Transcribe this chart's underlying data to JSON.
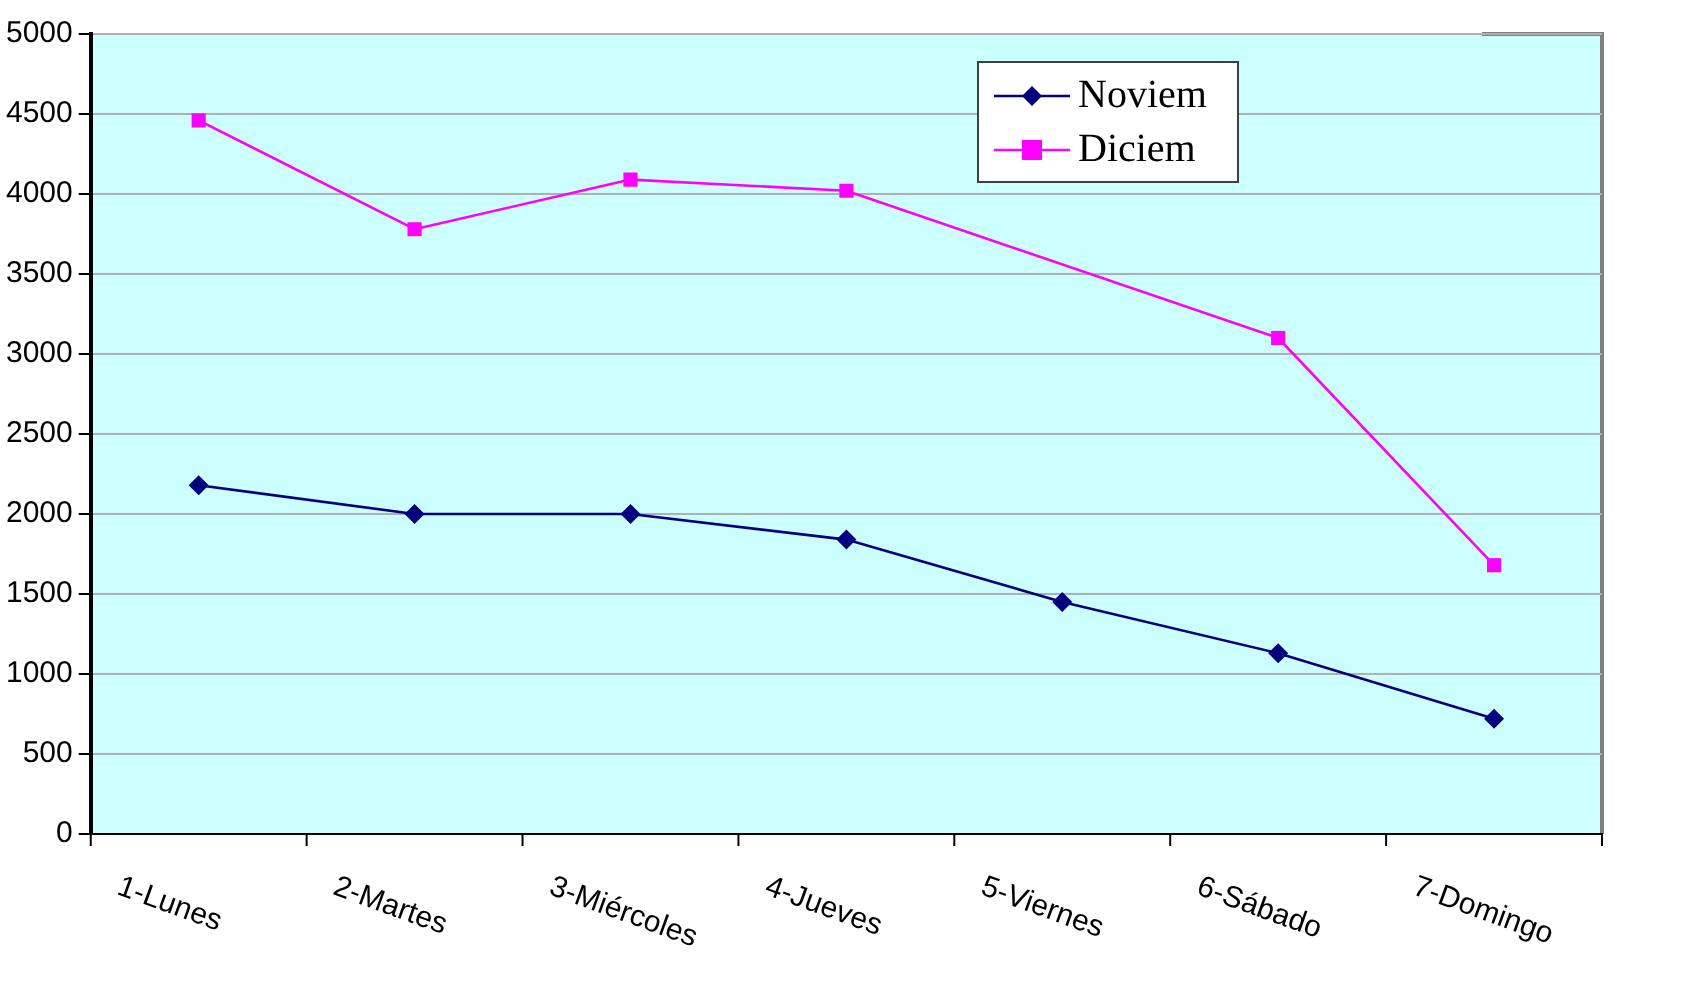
{
  "chart_data": {
    "type": "line",
    "categories": [
      "1-Lunes",
      "2-Martes",
      "3-Miércoles",
      "4-Jueves",
      "5-Viernes",
      "6-Sábado",
      "7-Domingo"
    ],
    "series": [
      {
        "name": "Noviem",
        "color": "#000080",
        "values": [
          2180,
          2000,
          2000,
          1840,
          1450,
          1130,
          720
        ],
        "marker": "diamond"
      },
      {
        "name": "Diciem",
        "color": "#ff00ff",
        "values": [
          4460,
          3780,
          4090,
          4020,
          null,
          3100,
          1680
        ],
        "marker": "square"
      }
    ],
    "ylim": [
      0,
      5000
    ],
    "yticks": [
      0,
      500,
      1000,
      1500,
      2000,
      2500,
      3000,
      3500,
      4000,
      4500,
      5000
    ],
    "grid": "y",
    "legend": "top right",
    "line_style": "solid"
  }
}
